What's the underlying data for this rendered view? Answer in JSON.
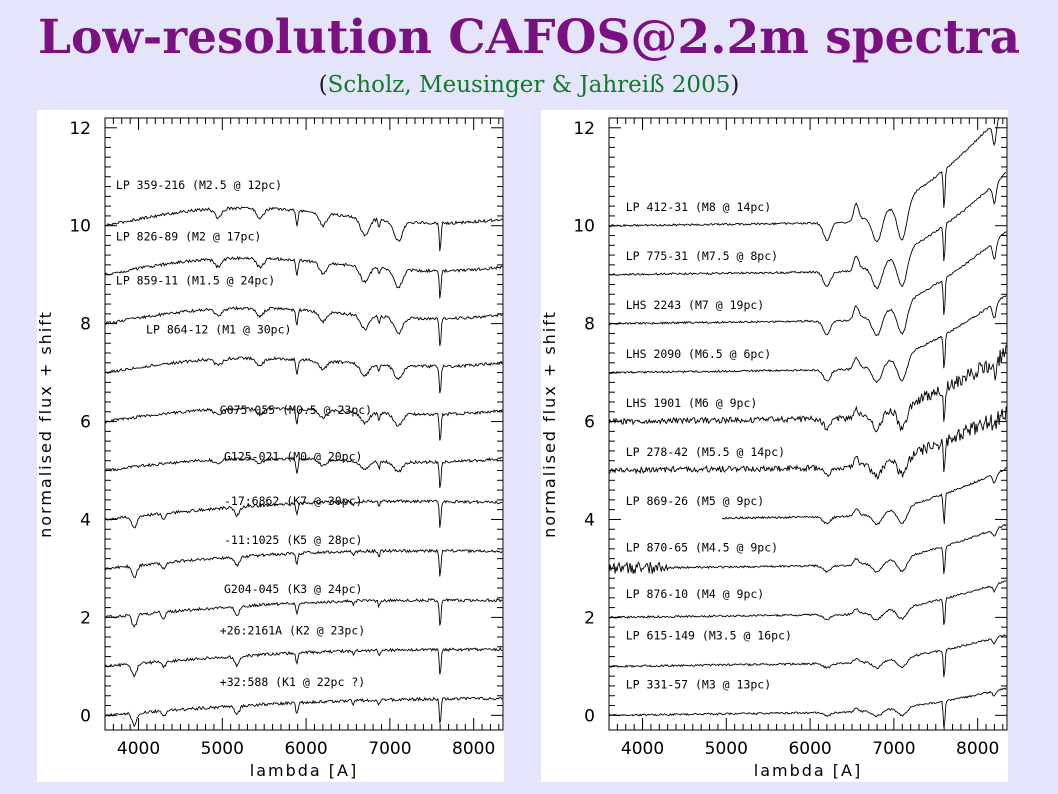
{
  "header": {
    "title": "Low-resolution CAFOS@2.2m spectra",
    "subtitle_open": "(",
    "citation": "Scholz, Meusinger & Jahreiß 2005",
    "subtitle_close": ")"
  },
  "colors": {
    "background": "#e4e4fb",
    "title": "#7b1180",
    "citation": "#117a2b",
    "panel": "#ffffff",
    "ink": "#000000"
  },
  "chart_data": [
    {
      "type": "line",
      "panel": "left",
      "xlabel": "lambda [A]",
      "ylabel": "normalised flux + shift",
      "xlim": [
        3600,
        8350
      ],
      "ylim": [
        -0.3,
        12.2
      ],
      "xticks": [
        4000,
        5000,
        6000,
        7000,
        8000
      ],
      "yticks": [
        0,
        2,
        4,
        6,
        8,
        10,
        12
      ],
      "grid": false,
      "series": [
        {
          "name": "LP 359-216 (M2.5 @ 12pc)",
          "offset": 10,
          "x_range": [
            3600,
            8350
          ],
          "label_x": 3730,
          "label_y": 10.75,
          "kind": "M",
          "amp": 1.0
        },
        {
          "name": "LP 826-89 (M2 @ 17pc)",
          "offset": 9,
          "x_range": [
            3600,
            8350
          ],
          "label_x": 3730,
          "label_y": 9.7,
          "kind": "M",
          "amp": 0.9
        },
        {
          "name": "LP 859-11 (M1.5 @ 24pc)",
          "offset": 8,
          "x_range": [
            3600,
            8350
          ],
          "label_x": 3730,
          "label_y": 8.8,
          "kind": "M",
          "amp": 0.8
        },
        {
          "name": "LP 864-12 (M1 @ 30pc)",
          "offset": 7,
          "x_range": [
            3600,
            8350
          ],
          "label_x": 4090,
          "label_y": 7.8,
          "kind": "M",
          "amp": 0.7
        },
        {
          "name": "G075-055 (M0.5 @ 23pc)",
          "offset": 6,
          "x_range": [
            3600,
            8350
          ],
          "label_x": 4970,
          "label_y": 6.15,
          "kind": "M",
          "amp": 0.6
        },
        {
          "name": "G125-021 (M0 @ 20pc)",
          "offset": 5,
          "x_range": [
            3600,
            8350
          ],
          "label_x": 5020,
          "label_y": 5.2,
          "kind": "M",
          "amp": 0.5
        },
        {
          "name": "-17:6862 (K7 @ 30pc)",
          "offset": 4,
          "x_range": [
            3600,
            8350
          ],
          "label_x": 5020,
          "label_y": 4.3,
          "kind": "K",
          "amp": 0.45
        },
        {
          "name": "-11:1025 (K5 @ 28pc)",
          "offset": 3,
          "x_range": [
            3600,
            8350
          ],
          "label_x": 5020,
          "label_y": 3.5,
          "kind": "K",
          "amp": 0.4
        },
        {
          "name": "G204-045 (K3 @ 24pc)",
          "offset": 2,
          "x_range": [
            3600,
            8350
          ],
          "label_x": 5020,
          "label_y": 2.5,
          "kind": "K",
          "amp": 0.35
        },
        {
          "name": "+26:2161A (K2 @ 23pc)",
          "offset": 1,
          "x_range": [
            3600,
            8350
          ],
          "label_x": 4970,
          "label_y": 1.65,
          "kind": "K",
          "amp": 0.3
        },
        {
          "name": "+32:588 (K1 @ 22pc ?)",
          "offset": 0,
          "x_range": [
            3600,
            8350
          ],
          "label_x": 4970,
          "label_y": 0.6,
          "kind": "K",
          "amp": 0.25
        }
      ]
    },
    {
      "type": "line",
      "panel": "right",
      "xlabel": "lambda [A]",
      "ylabel": "normalised flux + shift",
      "xlim": [
        3600,
        8350
      ],
      "ylim": [
        -0.3,
        12.2
      ],
      "xticks": [
        4000,
        5000,
        6000,
        7000,
        8000
      ],
      "yticks": [
        0,
        2,
        4,
        6,
        8,
        10,
        12
      ],
      "grid": false,
      "series": [
        {
          "name": "LP 412-31 (M8 @ 14pc)",
          "offset": 10,
          "x_range": [
            3600,
            8350
          ],
          "label_x": 3800,
          "label_y": 10.3,
          "kind": "lateM",
          "amp": 2.3
        },
        {
          "name": "LP 775-31 (M7.5 @ 8pc)",
          "offset": 9,
          "x_range": [
            3600,
            8350
          ],
          "label_x": 3800,
          "label_y": 9.3,
          "kind": "lateM",
          "amp": 2.0
        },
        {
          "name": "LHS 2243 (M7 @ 19pc)",
          "offset": 8,
          "x_range": [
            3600,
            8350
          ],
          "label_x": 3800,
          "label_y": 8.3,
          "kind": "lateM",
          "amp": 1.8
        },
        {
          "name": "LHS 2090 (M6.5 @ 6pc)",
          "offset": 7,
          "x_range": [
            3600,
            8350
          ],
          "label_x": 3800,
          "label_y": 7.3,
          "kind": "lateM",
          "amp": 1.5
        },
        {
          "name": "LHS 1901 (M6 @ 9pc)",
          "offset": 6,
          "x_range": [
            3600,
            8350
          ],
          "label_x": 3800,
          "label_y": 6.3,
          "kind": "lateM",
          "amp": 1.3,
          "noisy": true
        },
        {
          "name": "LP 278-42 (M5.5 @ 14pc)",
          "offset": 5,
          "x_range": [
            3600,
            8350
          ],
          "label_x": 3800,
          "label_y": 5.3,
          "kind": "lateM",
          "amp": 1.1,
          "noisy": true
        },
        {
          "name": "LP 869-26 (M5 @ 9pc)",
          "offset": 4,
          "x_range": [
            4950,
            8350
          ],
          "label_x": 3800,
          "label_y": 4.3,
          "kind": "lateM",
          "amp": 0.95
        },
        {
          "name": "LP 870-65 (M4.5 @ 9pc)",
          "offset": 3,
          "x_range": [
            3600,
            8350
          ],
          "label_x": 3800,
          "label_y": 3.35,
          "kind": "lateM",
          "amp": 0.8,
          "noisyBlue": true
        },
        {
          "name": "LP 876-10 (M4 @ 9pc)",
          "offset": 2,
          "x_range": [
            3600,
            8350
          ],
          "label_x": 3800,
          "label_y": 2.4,
          "kind": "lateM",
          "amp": 0.65
        },
        {
          "name": "LP 615-149 (M3.5 @ 16pc)",
          "offset": 1,
          "x_range": [
            3600,
            8350
          ],
          "label_x": 3800,
          "label_y": 1.55,
          "kind": "lateM",
          "amp": 0.55
        },
        {
          "name": "LP 331-57 (M3 @ 13pc)",
          "offset": 0,
          "x_range": [
            3600,
            8350
          ],
          "label_x": 3800,
          "label_y": 0.55,
          "kind": "lateM",
          "amp": 0.45
        }
      ]
    }
  ]
}
